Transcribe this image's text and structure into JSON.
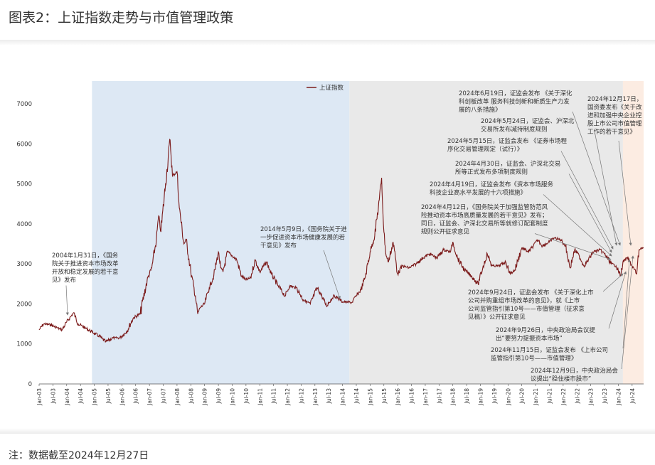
{
  "header": {
    "title": "图表2：上证指数走势与市值管理政策"
  },
  "footnote": "注：数据截至2024年12月27日",
  "chart_data": {
    "type": "line",
    "legend": {
      "label": "上证指数",
      "placement": "top-center"
    },
    "series": [
      {
        "name": "上证指数",
        "color": "#7b1a1a"
      }
    ],
    "ylim": [
      0,
      7000
    ],
    "yticks": [
      0,
      1000,
      2000,
      3000,
      4000,
      5000,
      6000,
      7000
    ],
    "xticks": [
      "Jan-03",
      "Jul-03",
      "Jan-04",
      "Jul-04",
      "Jan-05",
      "Jul-05",
      "Jan-06",
      "Jul-06",
      "Jan-07",
      "Jul-07",
      "Jan-08",
      "Jul-08",
      "Jan-09",
      "Jul-09",
      "Jan-10",
      "Jul-10",
      "Jan-11",
      "Jul-11",
      "Jan-12",
      "Jul-12",
      "Jan-13",
      "Jul-13",
      "Jan-14",
      "Jul-14",
      "Jan-15",
      "Jul-15",
      "Jan-16",
      "Jul-16",
      "Jan-17",
      "Jul-17",
      "Jan-18",
      "Jul-18",
      "Jan-19",
      "Jul-19",
      "Jan-20",
      "Jul-20",
      "Jan-21",
      "Jul-21",
      "Jan-22",
      "Jul-22",
      "Jan-23",
      "Jul-23",
      "Jan-24",
      "Jul-24"
    ],
    "x_start": "2003-01",
    "x_end": "2024-12",
    "points": [
      [
        "2003-01",
        1350
      ],
      [
        "2003-03",
        1500
      ],
      [
        "2003-06",
        1480
      ],
      [
        "2003-09",
        1400
      ],
      [
        "2003-11",
        1350
      ],
      [
        "2004-01",
        1550
      ],
      [
        "2004-03",
        1700
      ],
      [
        "2004-04",
        1780
      ],
      [
        "2004-06",
        1500
      ],
      [
        "2004-09",
        1400
      ],
      [
        "2004-12",
        1300
      ],
      [
        "2005-03",
        1200
      ],
      [
        "2005-06",
        1050
      ],
      [
        "2005-09",
        1150
      ],
      [
        "2005-12",
        1150
      ],
      [
        "2006-03",
        1300
      ],
      [
        "2006-06",
        1650
      ],
      [
        "2006-09",
        1750
      ],
      [
        "2006-12",
        2600
      ],
      [
        "2007-02",
        2900
      ],
      [
        "2007-04",
        3600
      ],
      [
        "2007-05",
        4200
      ],
      [
        "2007-06",
        3800
      ],
      [
        "2007-08",
        5000
      ],
      [
        "2007-10",
        6100
      ],
      [
        "2007-11",
        5200
      ],
      [
        "2008-01",
        5300
      ],
      [
        "2008-02",
        4400
      ],
      [
        "2008-04",
        3500
      ],
      [
        "2008-05",
        3600
      ],
      [
        "2008-07",
        2800
      ],
      [
        "2008-09",
        2200
      ],
      [
        "2008-10",
        1750
      ],
      [
        "2008-11",
        1900
      ],
      [
        "2009-01",
        2000
      ],
      [
        "2009-03",
        2400
      ],
      [
        "2009-05",
        2700
      ],
      [
        "2009-07",
        3300
      ],
      [
        "2009-08",
        2900
      ],
      [
        "2009-09",
        2800
      ],
      [
        "2009-11",
        3300
      ],
      [
        "2010-01",
        3200
      ],
      [
        "2010-03",
        3100
      ],
      [
        "2010-05",
        2700
      ],
      [
        "2010-07",
        2600
      ],
      [
        "2010-09",
        2650
      ],
      [
        "2010-11",
        3100
      ],
      [
        "2011-01",
        2800
      ],
      [
        "2011-04",
        3050
      ],
      [
        "2011-06",
        2750
      ],
      [
        "2011-09",
        2450
      ],
      [
        "2011-12",
        2200
      ],
      [
        "2012-02",
        2450
      ],
      [
        "2012-05",
        2400
      ],
      [
        "2012-08",
        2100
      ],
      [
        "2012-11",
        2000
      ],
      [
        "2013-02",
        2400
      ],
      [
        "2013-04",
        2200
      ],
      [
        "2013-06",
        1950
      ],
      [
        "2013-09",
        2200
      ],
      [
        "2013-11",
        2150
      ],
      [
        "2014-01",
        2050
      ],
      [
        "2014-03",
        2050
      ],
      [
        "2014-05",
        2030
      ],
      [
        "2014-07",
        2200
      ],
      [
        "2014-09",
        2350
      ],
      [
        "2014-11",
        2700
      ],
      [
        "2015-01",
        3300
      ],
      [
        "2015-03",
        3700
      ],
      [
        "2015-05",
        4600
      ],
      [
        "2015-06",
        5150
      ],
      [
        "2015-07",
        3800
      ],
      [
        "2015-08",
        3200
      ],
      [
        "2015-09",
        3050
      ],
      [
        "2015-11",
        3550
      ],
      [
        "2016-01",
        2750
      ],
      [
        "2016-03",
        2950
      ],
      [
        "2016-06",
        2900
      ],
      [
        "2016-09",
        3000
      ],
      [
        "2016-12",
        3150
      ],
      [
        "2017-03",
        3250
      ],
      [
        "2017-06",
        3150
      ],
      [
        "2017-09",
        3350
      ],
      [
        "2017-12",
        3300
      ],
      [
        "2018-01",
        3550
      ],
      [
        "2018-03",
        3150
      ],
      [
        "2018-06",
        2850
      ],
      [
        "2018-09",
        2700
      ],
      [
        "2018-12",
        2500
      ],
      [
        "2019-02",
        2900
      ],
      [
        "2019-04",
        3250
      ],
      [
        "2019-06",
        2950
      ],
      [
        "2019-09",
        2950
      ],
      [
        "2019-12",
        3050
      ],
      [
        "2020-02",
        2750
      ],
      [
        "2020-04",
        2850
      ],
      [
        "2020-07",
        3400
      ],
      [
        "2020-10",
        3300
      ],
      [
        "2020-12",
        3450
      ],
      [
        "2021-02",
        3600
      ],
      [
        "2021-04",
        3450
      ],
      [
        "2021-07",
        3550
      ],
      [
        "2021-09",
        3650
      ],
      [
        "2021-12",
        3600
      ],
      [
        "2022-02",
        3450
      ],
      [
        "2022-04",
        2900
      ],
      [
        "2022-06",
        3350
      ],
      [
        "2022-08",
        3200
      ],
      [
        "2022-10",
        2950
      ],
      [
        "2022-12",
        3100
      ],
      [
        "2023-02",
        3300
      ],
      [
        "2023-05",
        3350
      ],
      [
        "2023-07",
        3250
      ],
      [
        "2023-10",
        3000
      ],
      [
        "2023-12",
        2950
      ],
      [
        "2024-02",
        2700
      ],
      [
        "2024-03",
        3050
      ],
      [
        "2024-05",
        3150
      ],
      [
        "2024-07",
        2950
      ],
      [
        "2024-09",
        2750
      ],
      [
        "2024-10",
        3350
      ],
      [
        "2024-11",
        3400
      ],
      [
        "2024-12",
        3400
      ]
    ],
    "shaded_regions": [
      {
        "from": "2004-12",
        "to": "2014-04",
        "color": "#dde8f4"
      },
      {
        "from": "2014-04",
        "to": "2024-03",
        "color": "#e9e9e9"
      },
      {
        "from": "2024-03",
        "to": "2024-12",
        "color": "#fcece2"
      }
    ],
    "annotations": [
      {
        "lines": [
          "2004年1月31日，《国务",
          "院关于推进资本市场改革",
          "开放和稳定发展的若干意",
          "见》发布"
        ],
        "target": [
          "2004-01",
          1700
        ]
      },
      {
        "lines": [
          "2014年5月9日，《国务院关于进",
          "一步促进资本市场健康发展的若",
          "干意见》发布"
        ],
        "target": [
          "2014-05",
          2050
        ]
      },
      {
        "lines": [
          "2024年6月19日，证监会发布 《关于深化",
          "科创板改革 服务科技创新和新质生产力发",
          "展的八条措施》"
        ],
        "target": [
          "2024-06",
          2950
        ]
      },
      {
        "lines": [
          "2024年12月17日，",
          "国资委发布《关于改",
          "进和加强中央企业控",
          "股上市公司市值管理",
          "工作的若干意见》"
        ],
        "target": [
          "2024-12",
          3400
        ]
      },
      {
        "lines": [
          "2024年5月24日，证监会、沪深北",
          "交易所发布减持制度规则"
        ],
        "target": [
          "2024-05",
          3100
        ]
      },
      {
        "lines": [
          "2024年5月15日，证监会发布 《证券市场程",
          "序化交易管理规定（试行）》"
        ],
        "target": [
          "2024-05",
          3150
        ]
      },
      {
        "lines": [
          "2024年4月30日，证监会、沪深北交易",
          "所等正式发布多项制度规则"
        ],
        "target": [
          "2024-04",
          3100
        ]
      },
      {
        "lines": [
          "2024年4月19日，证监会发布《资本市场服务",
          "科技企业高水平发展的十六项措施》"
        ],
        "target": [
          "2024-04",
          3050
        ]
      },
      {
        "lines": [
          "2024年4月12日，《国务院关于加强监管防范风",
          "险推动资本市场高质量发展的若干意见》发布；",
          "同日，证监会、沪深北交易所等就修订配套制度",
          "规则公开征求意见"
        ],
        "target": [
          "2024-04",
          3000
        ]
      },
      {
        "lines": [
          "2024年9月24日，证监会发布 《关于深化上市",
          "公司并购重组市场改革的意见》，就《上市",
          "公司监管指引第10号——市值管理（征求意",
          "见稿）》公开征求意见"
        ],
        "target": [
          "2024-09",
          2750
        ]
      },
      {
        "lines": [
          "2024年9月26日，中央政治局会议提",
          "出“要努力提振资本市场”"
        ],
        "target": [
          "2024-09",
          2800
        ]
      },
      {
        "lines": [
          "2024年11月15日，证监会发布 《上市公司",
          "监管指引第10号——市值管理》"
        ],
        "target": [
          "2024-11",
          3350
        ]
      },
      {
        "lines": [
          "2024年12月9日，中央政治局会",
          "议提出“稳住楼市股市”"
        ],
        "target": [
          "2024-12",
          3400
        ]
      }
    ]
  }
}
